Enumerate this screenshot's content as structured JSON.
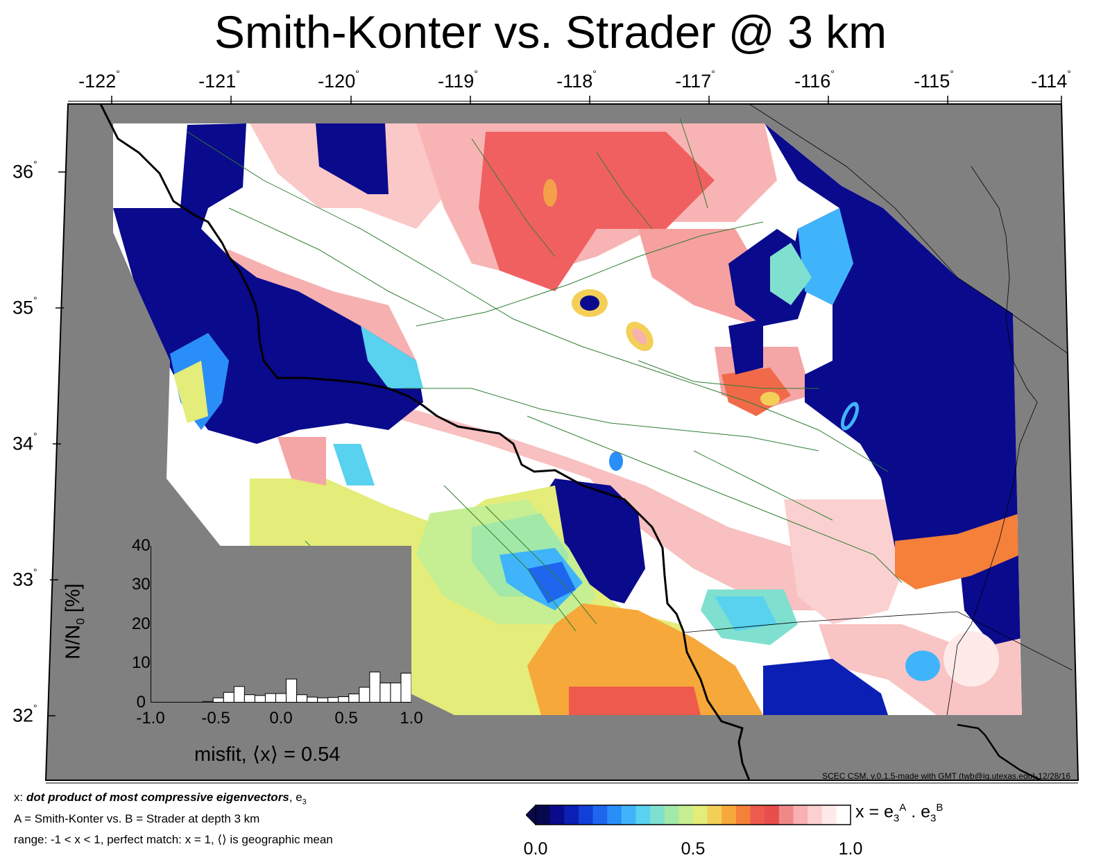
{
  "title": "Smith-Konter vs. Strader @ 3 km",
  "map": {
    "lon_ticks": [
      "-122",
      "-121",
      "-120",
      "-119",
      "-118",
      "-117",
      "-116",
      "-115",
      "-114"
    ],
    "lat_ticks": [
      "36",
      "35",
      "34",
      "33",
      "32"
    ],
    "degree_symbol": "°",
    "colors": {
      "no_data": "#808080",
      "coastline": "#000000",
      "faults": "#2e7d32",
      "frame": "#000000"
    },
    "credit": "SCEC CSM, v.0.1.5-made with GMT (twb@ig.utexas.edu)-12/28/16"
  },
  "histogram": {
    "y_ticks": [
      "40",
      "30",
      "20",
      "10",
      "0"
    ],
    "x_ticks": [
      "-1.0",
      "-0.5",
      "0.0",
      "0.5",
      "1.0"
    ],
    "ylabel_main": "N/N",
    "ylabel_sub": "0",
    "ylabel_unit": " [%]",
    "xlabel": "misfit, ⟨x⟩ = 0.54",
    "chart_data": {
      "type": "bar",
      "xlim": [
        -1.0,
        1.0
      ],
      "ylim": [
        0,
        40
      ],
      "bin_width": 0.08,
      "bin_starts": [
        -1.0,
        -0.92,
        -0.84,
        -0.76,
        -0.68,
        -0.6,
        -0.52,
        -0.44,
        -0.36,
        -0.28,
        -0.2,
        -0.12,
        -0.04,
        0.04,
        0.12,
        0.2,
        0.28,
        0.36,
        0.44,
        0.52,
        0.6,
        0.68,
        0.76,
        0.84,
        0.92
      ],
      "values": [
        0,
        0,
        0,
        0,
        0,
        0.3,
        1.2,
        2.6,
        4.1,
        2.0,
        1.8,
        2.3,
        2.3,
        6.0,
        2.0,
        1.4,
        1.2,
        1.3,
        1.5,
        2.2,
        3.9,
        7.8,
        5.0,
        5.0,
        7.5
      ]
    }
  },
  "legend": {
    "line1_x": "x: ",
    "line1_bold": "dot product of most compressive eigenvectors",
    "line1_tail": ", e",
    "line1_sub": "3",
    "line2": "A = Smith-Konter vs.  B = Strader at depth 3 km",
    "line3": "range: -1 < x < 1, perfect match: x = 1, ⟨⟩ is geographic mean"
  },
  "colorbar": {
    "ticks": [
      "0.0",
      "0.5",
      "1.0"
    ],
    "label_prefix": "x = e",
    "label_sub1": "3",
    "label_sup1": "A",
    "label_mid": " . e",
    "label_sub2": "3",
    "label_sup2": "B",
    "colors": [
      "#08084f",
      "#0a0a8c",
      "#0b1fb5",
      "#1140d8",
      "#1e66ee",
      "#2a8ef8",
      "#3fb4fb",
      "#58d2ee",
      "#7fe0cf",
      "#a2e8a8",
      "#c6ee92",
      "#e4ec7a",
      "#f4cf58",
      "#f6a83a",
      "#f4803a",
      "#ee5a4c",
      "#e84c4c",
      "#f08888",
      "#f8b0b0",
      "#fcd0d0",
      "#ffeaea",
      "#ffffff"
    ]
  }
}
